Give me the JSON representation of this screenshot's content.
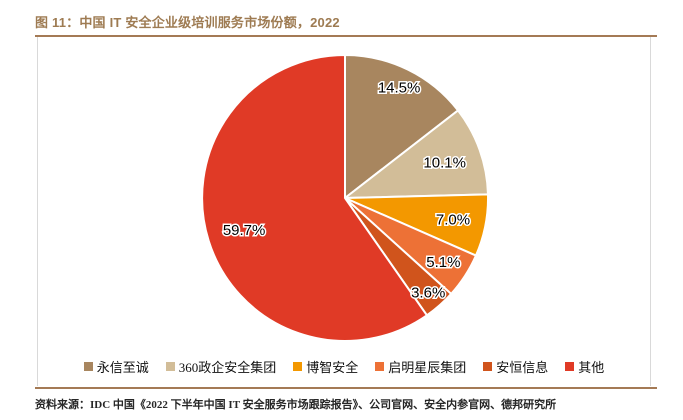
{
  "figure": {
    "title": "图 11：中国 IT 安全企业级培训服务市场份额，2022",
    "source": "资料来源：IDC 中国《2022 下半年中国 IT 安全服务市场跟踪报告》、公司官网、安全内参官网、德邦研究所"
  },
  "colors": {
    "title_text": "#9E7B52",
    "rule": "#A47A55",
    "box_border": "#D9D9D9",
    "slice_stroke": "#FFFFFF",
    "label_text": "#000000"
  },
  "chart_data": {
    "type": "pie",
    "title": "中国 IT 安全企业级培训服务市场份额，2022",
    "unit": "%",
    "start_angle_deg": 0,
    "direction": "clockwise",
    "legend_position": "bottom",
    "slices": [
      {
        "name": "永信至诚",
        "value": 14.5,
        "label": "14.5%",
        "color": "#A8865F",
        "label_r": 0.86
      },
      {
        "name": "360政企安全集团",
        "value": 10.1,
        "label": "10.1%",
        "color": "#D2BD98",
        "label_r": 0.74
      },
      {
        "name": "博智安全",
        "value": 7.0,
        "label": "7.0%",
        "color": "#F39800",
        "label_r": 0.77
      },
      {
        "name": "启明星辰集团",
        "value": 5.1,
        "label": "5.1%",
        "color": "#ED7136",
        "label_r": 0.82
      },
      {
        "name": "安恒信息",
        "value": 3.6,
        "label": "3.6%",
        "color": "#D0541C",
        "label_r": 0.88
      },
      {
        "name": "其他",
        "value": 59.7,
        "label": "59.7%",
        "color": "#E03A26",
        "label_r": 0.74
      }
    ]
  }
}
